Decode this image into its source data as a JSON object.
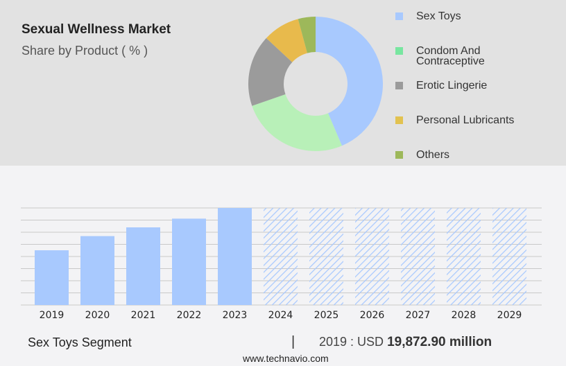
{
  "title": "Sexual Wellness Market",
  "subtitle": "Share by Product ( % )",
  "chart_data": [
    {
      "type": "pie",
      "donut": true,
      "categories": [
        "Sex Toys",
        "Condom And Contraceptive",
        "Erotic Lingerie",
        "Personal Lubricants",
        "Others"
      ],
      "values": [
        43.6,
        26.1,
        17.2,
        8.9,
        4.2
      ],
      "colors": [
        "#a8c9fe",
        "#b8f0b8",
        "#9b9b9b",
        "#e8ba4c",
        "#9db85a"
      ],
      "legend_colors": [
        "#a8c9fe",
        "#78e6a0",
        "#9b9b9b",
        "#e2c250",
        "#9db85a"
      ],
      "legend": "right"
    },
    {
      "type": "bar",
      "categories": [
        "2019",
        "2020",
        "2021",
        "2022",
        "2023",
        "2024",
        "2025",
        "2026",
        "2027",
        "2028",
        "2029"
      ],
      "values": [
        19872.9,
        25020,
        28190,
        31360,
        35240,
        null,
        null,
        null,
        null,
        null,
        null
      ],
      "forecast": [
        false,
        false,
        false,
        false,
        false,
        true,
        true,
        true,
        true,
        true,
        true
      ],
      "color": "#a8c9fe",
      "grid": true,
      "ylabel": "",
      "xlabel": ""
    }
  ],
  "footer": {
    "segment": "Sex Toys Segment",
    "separator": "|",
    "value_prefix": "2019 : USD ",
    "value": "19,872.90 million",
    "source": "www.technavio.com"
  }
}
